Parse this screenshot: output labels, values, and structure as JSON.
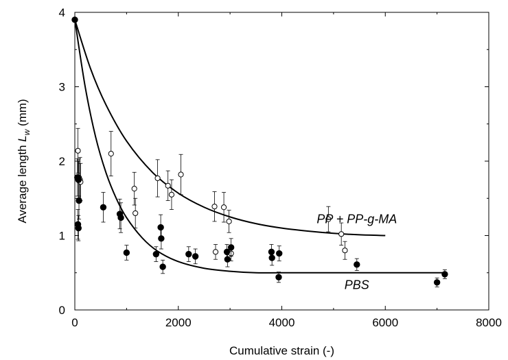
{
  "chart_data": {
    "type": "scatter",
    "xlabel": "Cumulative strain (-)",
    "ylabel": {
      "main": "Average length ",
      "var": "L",
      "sub": "w",
      "unit": " (mm)"
    },
    "xlim": [
      0,
      8000
    ],
    "ylim": [
      0,
      4
    ],
    "xticks": [
      0,
      2000,
      4000,
      6000,
      8000
    ],
    "yticks": [
      0,
      1,
      2,
      3,
      4
    ],
    "xtick_labels": [
      "0",
      "2000",
      "4000",
      "6000",
      "8000"
    ],
    "ytick_labels": [
      "0",
      "1",
      "2",
      "3",
      "4"
    ],
    "grid": false,
    "series": [
      {
        "name": "PP + PP-g-MA",
        "marker": "open-circle",
        "points": [
          {
            "x": 60,
            "y": 2.14,
            "err": 0.3
          },
          {
            "x": 80,
            "y": 1.78,
            "err": 0.25
          },
          {
            "x": 100,
            "y": 1.75,
            "err": 0.3
          },
          {
            "x": 110,
            "y": 1.72,
            "err": 0.25
          },
          {
            "x": 700,
            "y": 2.1,
            "err": 0.3
          },
          {
            "x": 1150,
            "y": 1.63,
            "err": 0.22
          },
          {
            "x": 1170,
            "y": 1.3,
            "err": 0.2
          },
          {
            "x": 1600,
            "y": 1.77,
            "err": 0.25
          },
          {
            "x": 1800,
            "y": 1.67,
            "err": 0.2
          },
          {
            "x": 1870,
            "y": 1.55,
            "err": 0.2
          },
          {
            "x": 2050,
            "y": 1.82,
            "err": 0.27
          },
          {
            "x": 2700,
            "y": 1.39,
            "err": 0.2
          },
          {
            "x": 2880,
            "y": 1.38,
            "err": 0.2
          },
          {
            "x": 2980,
            "y": 1.19,
            "err": 0.15
          },
          {
            "x": 2720,
            "y": 0.78,
            "err": 0.1
          },
          {
            "x": 3020,
            "y": 0.76,
            "err": 0.1
          },
          {
            "x": 4900,
            "y": 1.22,
            "err": 0.17
          },
          {
            "x": 5150,
            "y": 1.02,
            "err": 0.15
          },
          {
            "x": 5220,
            "y": 0.8,
            "err": 0.12
          }
        ],
        "fit": [
          [
            0,
            3.9
          ],
          [
            300,
            3.25
          ],
          [
            600,
            2.76
          ],
          [
            1000,
            2.27
          ],
          [
            1500,
            1.85
          ],
          [
            2000,
            1.57
          ],
          [
            2500,
            1.38
          ],
          [
            3000,
            1.25
          ],
          [
            3500,
            1.16
          ],
          [
            4000,
            1.1
          ],
          [
            4500,
            1.06
          ],
          [
            5000,
            1.03
          ],
          [
            5500,
            1.01
          ],
          [
            6000,
            1.0
          ]
        ]
      },
      {
        "name": "PBS",
        "marker": "filled-circle",
        "points": [
          {
            "x": 0,
            "y": 3.9,
            "err": 0
          },
          {
            "x": 50,
            "y": 1.78,
            "err": 0.25
          },
          {
            "x": 70,
            "y": 1.75,
            "err": 0.25
          },
          {
            "x": 80,
            "y": 1.47,
            "err": 0.25
          },
          {
            "x": 60,
            "y": 1.15,
            "err": 0.2
          },
          {
            "x": 70,
            "y": 1.1,
            "err": 0.17
          },
          {
            "x": 550,
            "y": 1.38,
            "err": 0.2
          },
          {
            "x": 870,
            "y": 1.29,
            "err": 0.2
          },
          {
            "x": 890,
            "y": 1.24,
            "err": 0.2
          },
          {
            "x": 1000,
            "y": 0.77,
            "err": 0.1
          },
          {
            "x": 1570,
            "y": 0.75,
            "err": 0.1
          },
          {
            "x": 1660,
            "y": 1.11,
            "err": 0.17
          },
          {
            "x": 1670,
            "y": 0.96,
            "err": 0.14
          },
          {
            "x": 1700,
            "y": 0.58,
            "err": 0.09
          },
          {
            "x": 2200,
            "y": 0.75,
            "err": 0.1
          },
          {
            "x": 2330,
            "y": 0.72,
            "err": 0.1
          },
          {
            "x": 2940,
            "y": 0.78,
            "err": 0.1
          },
          {
            "x": 2950,
            "y": 0.68,
            "err": 0.1
          },
          {
            "x": 3020,
            "y": 0.84,
            "err": 0.12
          },
          {
            "x": 3800,
            "y": 0.78,
            "err": 0.1
          },
          {
            "x": 3810,
            "y": 0.7,
            "err": 0.1
          },
          {
            "x": 3950,
            "y": 0.76,
            "err": 0.1
          },
          {
            "x": 3940,
            "y": 0.44,
            "err": 0.07
          },
          {
            "x": 5450,
            "y": 0.61,
            "err": 0.08
          },
          {
            "x": 7000,
            "y": 0.37,
            "err": 0.06
          },
          {
            "x": 7150,
            "y": 0.48,
            "err": 0.06
          }
        ],
        "fit": [
          [
            0,
            3.9
          ],
          [
            200,
            3.0
          ],
          [
            400,
            2.33
          ],
          [
            600,
            1.85
          ],
          [
            800,
            1.5
          ],
          [
            1000,
            1.24
          ],
          [
            1300,
            0.97
          ],
          [
            1600,
            0.79
          ],
          [
            2000,
            0.65
          ],
          [
            2500,
            0.56
          ],
          [
            3000,
            0.52
          ],
          [
            3500,
            0.5
          ],
          [
            4000,
            0.5
          ],
          [
            5000,
            0.5
          ],
          [
            6000,
            0.5
          ],
          [
            7200,
            0.5
          ]
        ]
      }
    ]
  }
}
